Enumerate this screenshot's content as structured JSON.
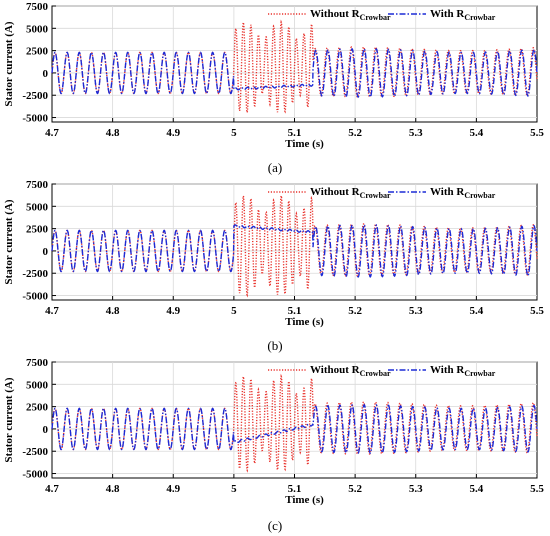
{
  "chart_data": [
    {
      "type": "line",
      "caption": "(a)",
      "xlabel": "Time (s)",
      "ylabel": "Stator current (A)",
      "xlim": [
        4.7,
        5.5
      ],
      "ylim": [
        -5500,
        7500
      ],
      "x_ticks": [
        "4.7",
        "4.8",
        "4.9",
        "5",
        "5.1",
        "5.2",
        "5.3",
        "5.4",
        "5.5"
      ],
      "y_ticks": [
        "7500",
        "5000",
        "2500",
        "0",
        "-2500",
        "-5000"
      ],
      "grid": true,
      "legend_position": "top-right",
      "series": [
        {
          "name": "Without R",
          "name_sub": "Crowbar",
          "color": "#e8332d",
          "style": "dotted",
          "frequency_hz": 50,
          "pre_fault_amplitude": 2300,
          "fault_window": [
            5.0,
            5.13
          ],
          "fault_peak": 5100,
          "post_fault_amplitude": 2600
        },
        {
          "name": "With R",
          "name_sub": "Crowbar",
          "color": "#1c2bd6",
          "style": "dashdot",
          "frequency_hz": 50,
          "pre_fault_amplitude": 2300,
          "fault_window": [
            5.0,
            5.13
          ],
          "fault_level": -1800,
          "post_fault_amplitude": 2500
        }
      ]
    },
    {
      "type": "line",
      "caption": "(b)",
      "xlabel": "Time (s)",
      "ylabel": "Stator current (A)",
      "xlim": [
        4.7,
        5.5
      ],
      "ylim": [
        -5500,
        7500
      ],
      "x_ticks": [
        "4.7",
        "4.8",
        "4.9",
        "5",
        "5.1",
        "5.2",
        "5.3",
        "5.4",
        "5.5"
      ],
      "y_ticks": [
        "7500",
        "5000",
        "2500",
        "0",
        "-2500",
        "-5000"
      ],
      "grid": true,
      "legend_position": "top-right",
      "series": [
        {
          "name": "Without R",
          "name_sub": "Crowbar",
          "color": "#e8332d",
          "style": "dotted",
          "frequency_hz": 50,
          "pre_fault_amplitude": 2300,
          "fault_window": [
            5.0,
            5.13
          ],
          "fault_peak": 5600,
          "post_fault_amplitude": 2700
        },
        {
          "name": "With R",
          "name_sub": "Crowbar",
          "color": "#1c2bd6",
          "style": "dashdot",
          "frequency_hz": 50,
          "pre_fault_amplitude": 2300,
          "fault_window": [
            5.0,
            5.13
          ],
          "fault_level": 2800,
          "post_fault_amplitude": 2700
        }
      ]
    },
    {
      "type": "line",
      "caption": "(c)",
      "xlabel": "Time (s)",
      "ylabel": "Stator current (A)",
      "xlim": [
        4.7,
        5.5
      ],
      "ylim": [
        -5500,
        7500
      ],
      "x_ticks": [
        "4.7",
        "4.8",
        "4.9",
        "5",
        "5.1",
        "5.2",
        "5.3",
        "5.4",
        "5.5"
      ],
      "y_ticks": [
        "7500",
        "5000",
        "2500",
        "0",
        "-2500",
        "-5000"
      ],
      "grid": true,
      "legend_position": "top-right",
      "series": [
        {
          "name": "Without R",
          "name_sub": "Crowbar",
          "color": "#e8332d",
          "style": "dotted",
          "frequency_hz": 50,
          "pre_fault_amplitude": 2300,
          "fault_window": [
            5.0,
            5.13
          ],
          "fault_peak": 5300,
          "post_fault_amplitude": 2700
        },
        {
          "name": "With R",
          "name_sub": "Crowbar",
          "color": "#1c2bd6",
          "style": "dashdot",
          "frequency_hz": 50,
          "pre_fault_amplitude": 2300,
          "fault_window": [
            5.0,
            5.13
          ],
          "fault_level_start": -1500,
          "fault_level_end": 500,
          "post_fault_amplitude": 2500
        }
      ]
    }
  ]
}
